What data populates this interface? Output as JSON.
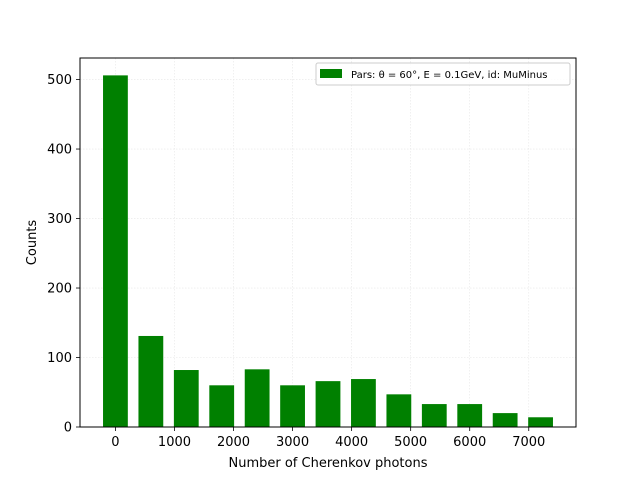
{
  "chart_data": {
    "type": "bar",
    "x": [
      0,
      600,
      1200,
      1800,
      2400,
      3000,
      3600,
      4200,
      4800,
      5400,
      6000,
      6600,
      7200
    ],
    "values": [
      506,
      131,
      82,
      60,
      83,
      60,
      66,
      69,
      47,
      33,
      33,
      20,
      14
    ],
    "bar_width": 420,
    "xlabel": "Number of Cherenkov photons",
    "ylabel": "Counts",
    "xlim": [
      -600,
      7800
    ],
    "ylim": [
      0,
      531
    ],
    "xticks": [
      0,
      1000,
      2000,
      3000,
      4000,
      5000,
      6000,
      7000
    ],
    "yticks": [
      0,
      100,
      200,
      300,
      400,
      500
    ],
    "grid": true,
    "legend_placement": "upper right",
    "series": [
      {
        "name": "Pars: θ = 60°, E = 0.1GeV, id: MuMinus",
        "color": "#008000"
      }
    ]
  }
}
